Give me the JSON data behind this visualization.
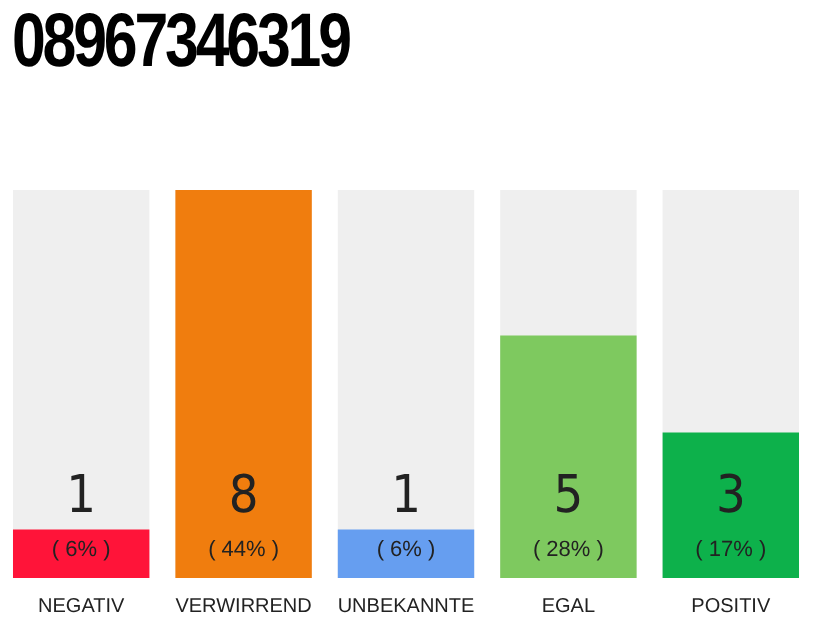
{
  "chart_data": {
    "type": "bar",
    "title": "08967346319",
    "categories": [
      "NEGATIV",
      "VERWIRREND",
      "UNBEKANNTE",
      "EGAL",
      "POSITIV"
    ],
    "values": [
      1,
      8,
      1,
      5,
      3
    ],
    "colors": [
      "#ff1439",
      "#f07d0e",
      "#669ef0",
      "#7ec95f",
      "#0db14b"
    ],
    "annotations": [
      "( 6% )",
      "( 44% )",
      "( 6% )",
      "( 28% )",
      "( 17% )"
    ],
    "data_labels": true,
    "grid": false,
    "legend": false
  }
}
